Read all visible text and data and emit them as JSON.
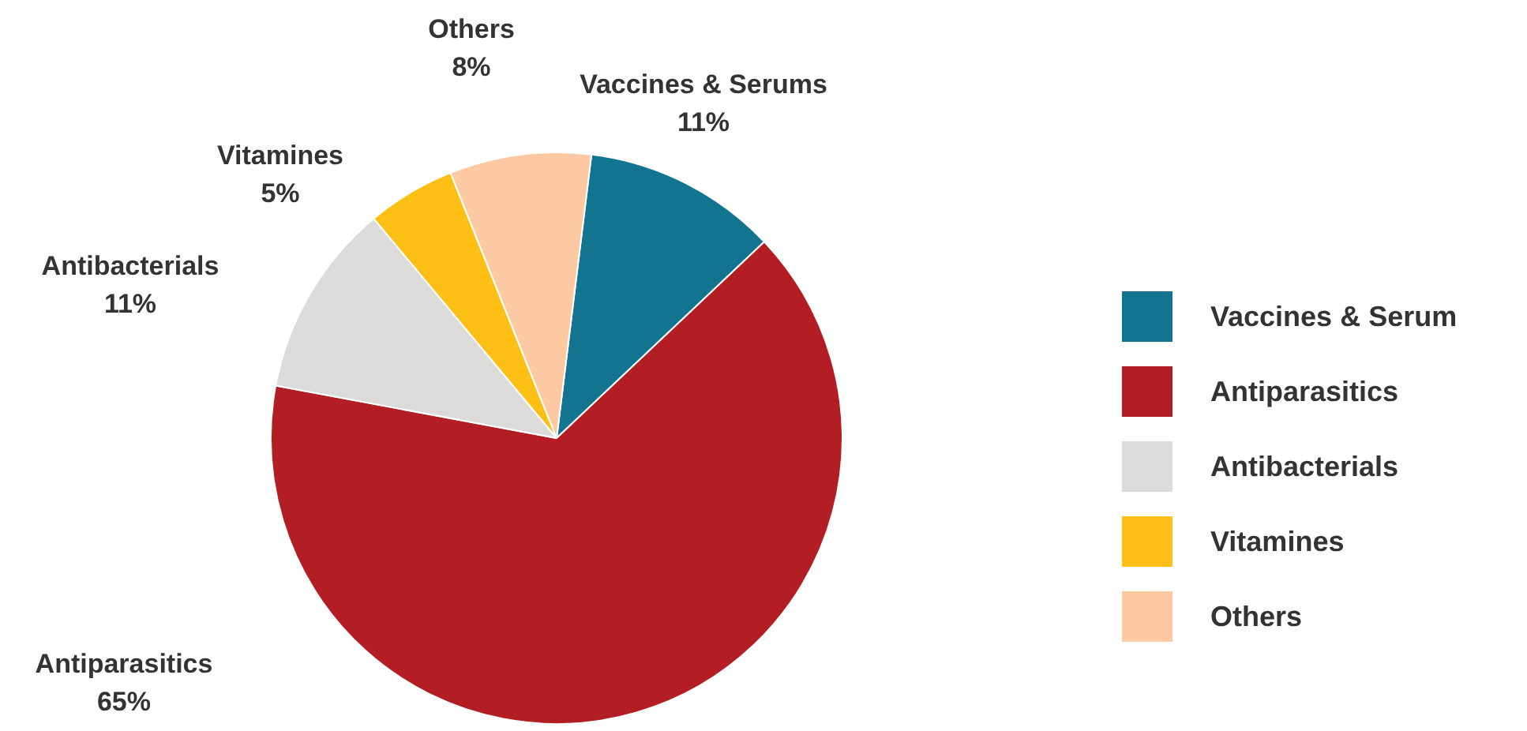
{
  "chart_data": {
    "type": "pie",
    "categories": [
      "Vaccines & Serum",
      "Antiparasitics",
      "Antibacterials",
      "Vitamines",
      "Others"
    ],
    "values": [
      11,
      65,
      11,
      5,
      8
    ],
    "colors": [
      "#137490",
      "#b31e24",
      "#dcdbd9",
      "#fbbf16",
      "#fdc9a3"
    ],
    "value_labels": [
      "Vaccines & Serums\n11%",
      "Antiparasitics\n65%",
      "Antibacterials\n11%",
      "Vitamines\n5%",
      "Others\n8%"
    ],
    "legend": "right"
  }
}
